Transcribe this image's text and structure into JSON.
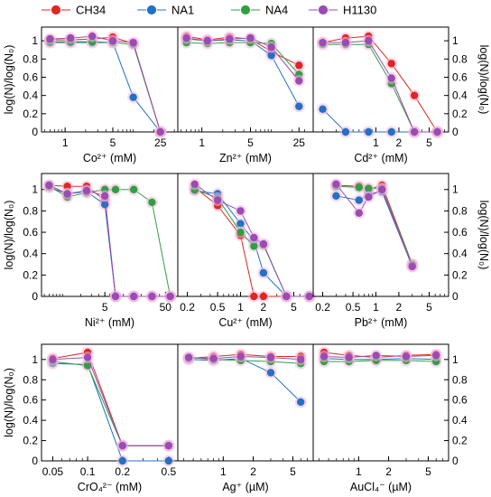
{
  "legend": [
    {
      "name": "CH34",
      "color": "#e0261f"
    },
    {
      "name": "NA1",
      "color": "#2171c7"
    },
    {
      "name": "NA4",
      "color": "#2ea043"
    },
    {
      "name": "H1130",
      "color": "#9a4bb5"
    }
  ],
  "y_axis_label": "log(N)/log(N₀)",
  "y_ticks": [
    "0",
    "0.2",
    "0.4",
    "0.6",
    "0.8",
    "1"
  ],
  "chart_data": [
    {
      "type": "line",
      "xscale": "log",
      "xlim": [
        0.45,
        45
      ],
      "ylim": [
        0,
        1.15
      ],
      "xlabel": "Co²⁺ (mM)",
      "x_ticks": [
        1,
        5,
        25
      ],
      "series": [
        {
          "name": "CH34",
          "x": [
            0.6,
            1.2,
            2.5,
            5,
            10,
            25
          ],
          "y": [
            1.01,
            1.01,
            1.02,
            1.04,
            0.97,
            0.0
          ]
        },
        {
          "name": "NA1",
          "x": [
            0.6,
            1.2,
            2.5,
            5,
            10,
            25
          ],
          "y": [
            0.98,
            0.98,
            0.98,
            0.98,
            0.38,
            0.0
          ]
        },
        {
          "name": "NA4",
          "x": [
            0.6,
            1.2,
            2.5,
            5,
            10,
            25
          ],
          "y": [
            0.99,
            0.99,
            0.99,
            0.98,
            0.96,
            0.0
          ]
        },
        {
          "name": "H1130",
          "x": [
            0.6,
            1.2,
            2.5,
            5,
            10,
            25
          ],
          "y": [
            1.02,
            1.03,
            1.05,
            1.0,
            0.98,
            0.0
          ]
        }
      ]
    },
    {
      "type": "line",
      "xscale": "log",
      "xlim": [
        0.45,
        40
      ],
      "ylim": [
        0,
        1.15
      ],
      "xlabel": "Zn²⁺ (mM)",
      "x_ticks": [
        1,
        5,
        25
      ],
      "series": [
        {
          "name": "CH34",
          "x": [
            0.6,
            1.2,
            2.5,
            5,
            10,
            25
          ],
          "y": [
            1.05,
            1.01,
            1.04,
            1.02,
            0.88,
            0.73
          ]
        },
        {
          "name": "NA1",
          "x": [
            0.6,
            1.2,
            2.5,
            5,
            10,
            25
          ],
          "y": [
            1.02,
            1.0,
            1.01,
            1.0,
            0.84,
            0.28
          ]
        },
        {
          "name": "NA4",
          "x": [
            0.6,
            1.2,
            2.5,
            5,
            10,
            25
          ],
          "y": [
            0.98,
            0.97,
            0.98,
            0.98,
            0.97,
            0.63
          ]
        },
        {
          "name": "H1130",
          "x": [
            0.6,
            1.2,
            2.5,
            5,
            10,
            25
          ],
          "y": [
            1.03,
            1.0,
            1.02,
            1.03,
            0.93,
            0.56
          ]
        }
      ]
    },
    {
      "type": "line",
      "xscale": "log",
      "xlim": [
        0.15,
        9
      ],
      "ylim": [
        0,
        1.15
      ],
      "xlabel": "Cd²⁺ (mM)",
      "x_ticks": [
        1,
        2,
        5
      ],
      "series": [
        {
          "name": "CH34",
          "x": [
            0.2,
            0.4,
            0.8,
            1.6,
            3.2,
            6.4
          ],
          "y": [
            0.98,
            1.03,
            1.05,
            0.75,
            0.4,
            0.0
          ]
        },
        {
          "name": "NA1",
          "x": [
            0.2,
            0.4,
            0.8,
            1.6,
            3.2,
            6.4
          ],
          "y": [
            0.25,
            0.0,
            0.0,
            0.0,
            0.0,
            0.0
          ]
        },
        {
          "name": "NA4",
          "x": [
            0.2,
            0.4,
            0.8,
            1.6,
            3.2,
            6.4
          ],
          "y": [
            0.96,
            0.96,
            0.96,
            0.53,
            0.0,
            0.0
          ]
        },
        {
          "name": "H1130",
          "x": [
            0.2,
            0.4,
            0.8,
            1.6,
            3.2,
            6.4
          ],
          "y": [
            0.98,
            0.98,
            1.0,
            0.59,
            0.0,
            0.0
          ]
        }
      ]
    },
    {
      "type": "line",
      "xscale": "log",
      "xlim": [
        0.45,
        80
      ],
      "ylim": [
        0,
        1.15
      ],
      "xlabel": "Ni²⁺ (mM)",
      "x_ticks": [
        5,
        50
      ],
      "series": [
        {
          "name": "CH34",
          "x": [
            0.6,
            1.2,
            2.5,
            5,
            7.5,
            15,
            30,
            60
          ],
          "y": [
            1.04,
            1.03,
            1.03,
            0.9,
            0.0,
            0.0,
            0.0,
            0.0
          ]
        },
        {
          "name": "NA1",
          "x": [
            0.6,
            1.2,
            2.5,
            5,
            7.5,
            15,
            30,
            60
          ],
          "y": [
            1.02,
            0.96,
            0.98,
            0.86,
            0.0,
            0.0,
            0.0,
            0.0
          ]
        },
        {
          "name": "NA4",
          "x": [
            0.6,
            1.2,
            2.5,
            5,
            7.5,
            15,
            30,
            60
          ],
          "y": [
            1.03,
            0.93,
            0.97,
            1.0,
            1.0,
            1.0,
            0.88,
            0.0
          ]
        },
        {
          "name": "H1130",
          "x": [
            0.6,
            1.2,
            2.5,
            5,
            7.5,
            15,
            30,
            60
          ],
          "y": [
            1.04,
            0.96,
            0.99,
            0.94,
            0.0,
            0.0,
            0.0,
            0.0
          ]
        }
      ]
    },
    {
      "type": "line",
      "xscale": "log",
      "xlim": [
        0.15,
        9
      ],
      "ylim": [
        0,
        1.15
      ],
      "xlabel": "Cu²⁺ (mM)",
      "x_ticks": [
        0.2,
        0.5,
        1,
        2,
        5
      ],
      "series": [
        {
          "name": "CH34",
          "x": [
            0.25,
            0.5,
            1,
            1.5,
            2,
            4,
            8
          ],
          "y": [
            1.02,
            0.85,
            0.57,
            0.0,
            0.0,
            0.0,
            0.0
          ]
        },
        {
          "name": "NA1",
          "x": [
            0.25,
            0.5,
            1,
            1.5,
            2,
            4,
            8
          ],
          "y": [
            0.99,
            0.96,
            0.68,
            0.52,
            0.22,
            0.0,
            0.0
          ]
        },
        {
          "name": "NA4",
          "x": [
            0.25,
            0.5,
            1,
            1.5,
            2,
            4,
            8
          ],
          "y": [
            1.0,
            0.92,
            0.6,
            0.47,
            0.48,
            0.0,
            0.0
          ]
        },
        {
          "name": "H1130",
          "x": [
            0.25,
            0.5,
            1,
            1.5,
            2,
            4,
            8
          ],
          "y": [
            1.05,
            0.9,
            0.8,
            0.55,
            0.49,
            0.0,
            0.0
          ]
        }
      ]
    },
    {
      "type": "line",
      "xscale": "log",
      "xlim": [
        0.15,
        9
      ],
      "ylim": [
        0,
        1.15
      ],
      "xlabel": "Pb²⁺ (mM)",
      "x_ticks": [
        0.2,
        0.5,
        1,
        2,
        5
      ],
      "series": [
        {
          "name": "CH34",
          "x": [
            0.3,
            0.6,
            0.8,
            1.2,
            3
          ],
          "y": [
            1.04,
            1.03,
            1.0,
            1.04,
            0.3
          ]
        },
        {
          "name": "NA1",
          "x": [
            0.3,
            0.6,
            0.8,
            1.2,
            3
          ],
          "y": [
            0.94,
            0.9,
            0.96,
            0.98,
            0.28
          ]
        },
        {
          "name": "NA4",
          "x": [
            0.3,
            0.6,
            0.8,
            1.2,
            3
          ],
          "y": [
            1.03,
            1.02,
            1.01,
            1.01,
            0.3
          ]
        },
        {
          "name": "H1130",
          "x": [
            0.3,
            0.6,
            0.8,
            1.2,
            3
          ],
          "y": [
            1.05,
            0.78,
            0.93,
            1.0,
            0.28
          ]
        }
      ]
    },
    {
      "type": "line",
      "xscale": "log",
      "xlim": [
        0.04,
        0.6
      ],
      "ylim": [
        0,
        1.15
      ],
      "xlabel": "CrO₄²⁻ (mM)",
      "x_ticks": [
        0.05,
        0.1,
        0.2,
        0.5
      ],
      "series": [
        {
          "name": "CH34",
          "x": [
            0.05,
            0.1,
            0.2,
            0.5
          ],
          "y": [
            1.01,
            1.07,
            0.15,
            0.15
          ]
        },
        {
          "name": "NA1",
          "x": [
            0.05,
            0.1,
            0.2,
            0.5
          ],
          "y": [
            0.96,
            0.95,
            0.0,
            0.0
          ]
        },
        {
          "name": "NA4",
          "x": [
            0.05,
            0.1,
            0.2,
            0.5
          ],
          "y": [
            0.98,
            0.94,
            0.15,
            0.15
          ]
        },
        {
          "name": "H1130",
          "x": [
            0.05,
            0.1,
            0.2,
            0.5
          ],
          "y": [
            1.0,
            1.02,
            0.15,
            0.15
          ]
        }
      ]
    },
    {
      "type": "line",
      "xscale": "log",
      "xlim": [
        0.35,
        8
      ],
      "ylim": [
        0,
        1.15
      ],
      "xlabel": "Ag⁺ (µM)",
      "x_ticks": [
        1,
        2,
        5
      ],
      "series": [
        {
          "name": "CH34",
          "x": [
            0.45,
            0.8,
            1.5,
            3,
            6
          ],
          "y": [
            1.01,
            1.03,
            1.05,
            1.03,
            1.03
          ]
        },
        {
          "name": "NA1",
          "x": [
            0.45,
            0.8,
            1.5,
            3,
            6
          ],
          "y": [
            1.0,
            0.99,
            1.01,
            0.87,
            0.58
          ]
        },
        {
          "name": "NA4",
          "x": [
            0.45,
            0.8,
            1.5,
            3,
            6
          ],
          "y": [
            1.02,
            1.0,
            0.99,
            0.98,
            0.96
          ]
        },
        {
          "name": "H1130",
          "x": [
            0.45,
            0.8,
            1.5,
            3,
            6
          ],
          "y": [
            1.02,
            1.01,
            1.03,
            1.02,
            1.0
          ]
        }
      ]
    },
    {
      "type": "line",
      "xscale": "log",
      "xlim": [
        0.35,
        8
      ],
      "ylim": [
        0,
        1.15
      ],
      "xlabel": "AuCl₄⁻ (µM)",
      "x_ticks": [
        1,
        2,
        5
      ],
      "series": [
        {
          "name": "CH34",
          "x": [
            0.45,
            0.8,
            1.5,
            3,
            6
          ],
          "y": [
            1.07,
            1.04,
            1.02,
            1.04,
            1.05
          ]
        },
        {
          "name": "NA1",
          "x": [
            0.45,
            0.8,
            1.5,
            3,
            6
          ],
          "y": [
            1.01,
            1.0,
            1.0,
            1.01,
            1.0
          ]
        },
        {
          "name": "NA4",
          "x": [
            0.45,
            0.8,
            1.5,
            3,
            6
          ],
          "y": [
            0.98,
            0.98,
            0.99,
            0.99,
            0.98
          ]
        },
        {
          "name": "H1130",
          "x": [
            0.45,
            0.8,
            1.5,
            3,
            6
          ],
          "y": [
            1.03,
            1.02,
            1.04,
            1.03,
            1.04
          ]
        }
      ]
    }
  ]
}
